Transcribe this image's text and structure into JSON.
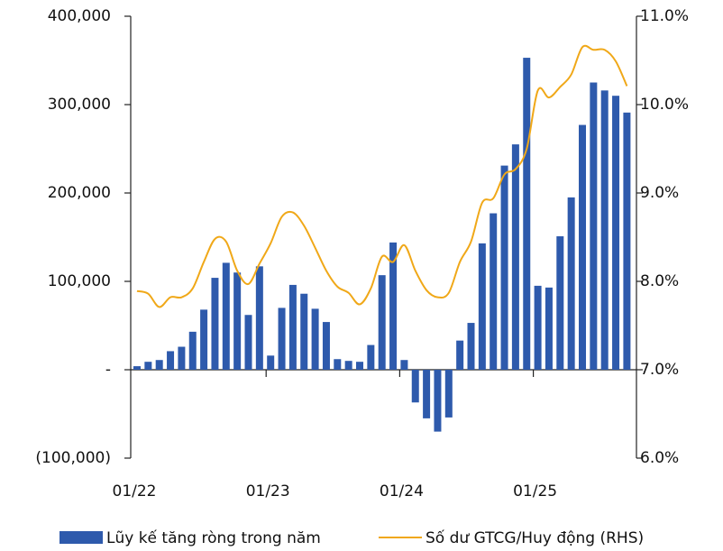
{
  "chart_data": {
    "type": "bar_line",
    "categories": [
      "01/22",
      null,
      null,
      null,
      null,
      null,
      null,
      null,
      null,
      null,
      null,
      null,
      "01/23",
      null,
      null,
      null,
      null,
      null,
      null,
      null,
      null,
      null,
      null,
      null,
      "01/24",
      null,
      null,
      null,
      null,
      null,
      null,
      null,
      null,
      null,
      null,
      null,
      "01/25",
      null,
      null,
      null,
      null,
      null,
      null,
      null,
      null
    ],
    "series": [
      {
        "name": "Lũy kế tăng ròng trong năm",
        "type": "bar",
        "color": "#2e5aac",
        "values": [
          4000,
          9000,
          11000,
          21000,
          26000,
          43000,
          68000,
          104000,
          121000,
          110000,
          62000,
          117000,
          16000,
          70000,
          96000,
          86000,
          69000,
          54000,
          12000,
          10000,
          9000,
          28000,
          107000,
          144000,
          11000,
          -37000,
          -55000,
          -70000,
          -54000,
          33000,
          53000,
          143000,
          177000,
          231000,
          255000,
          353000,
          95000,
          93000,
          151000,
          195000,
          277000,
          325000,
          316000,
          310000,
          291000
        ]
      },
      {
        "name": "Số dư GTCG/Huy động (RHS)",
        "type": "line",
        "axis": "y2",
        "color": "#f0a818",
        "values": [
          7.89,
          7.86,
          7.71,
          7.82,
          7.82,
          7.92,
          8.22,
          8.48,
          8.45,
          8.12,
          7.97,
          8.2,
          8.43,
          8.73,
          8.78,
          8.63,
          8.38,
          8.12,
          7.94,
          7.87,
          7.74,
          7.92,
          8.28,
          8.22,
          8.41,
          8.12,
          7.9,
          7.82,
          7.87,
          8.22,
          8.45,
          8.89,
          8.94,
          9.21,
          9.27,
          9.5,
          10.16,
          10.08,
          10.2,
          10.34,
          10.65,
          10.62,
          10.62,
          10.49,
          10.21
        ]
      }
    ],
    "ylim": [
      -100000,
      400000
    ],
    "yticks": [
      {
        "value": -100000,
        "label": "(100,000)"
      },
      {
        "value": 0,
        "label": "-"
      },
      {
        "value": 100000,
        "label": "100,000"
      },
      {
        "value": 200000,
        "label": "200,000"
      },
      {
        "value": 300000,
        "label": "300,000"
      },
      {
        "value": 400000,
        "label": "400,000"
      }
    ],
    "y2lim": [
      6,
      11
    ],
    "y2ticks": [
      {
        "value": 6,
        "label": "6.0%"
      },
      {
        "value": 7,
        "label": "7.0%"
      },
      {
        "value": 8,
        "label": "8.0%"
      },
      {
        "value": 9,
        "label": "9.0%"
      },
      {
        "value": 10,
        "label": "10.0%"
      },
      {
        "value": 11,
        "label": "11.0%"
      }
    ],
    "legend": "bottom"
  }
}
